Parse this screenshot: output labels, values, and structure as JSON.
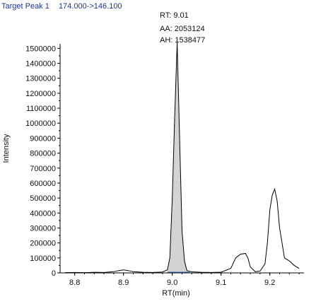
{
  "header": {
    "peak_label": "Target Peak 1",
    "transition": "174.000->146.100"
  },
  "annotation": {
    "rt": "RT: 9.01",
    "aa": "AA: 2053124",
    "ah": "AH: 1538477"
  },
  "colors": {
    "header_text": "#1a3399",
    "peak_fill": "#d3d3d3",
    "trace": "#000000",
    "baseline": "#4a7fbf"
  },
  "chart_data": {
    "type": "line",
    "title": "",
    "xlabel": "RT(min)",
    "ylabel": "Intensity",
    "xlim": [
      8.77,
      9.27
    ],
    "ylim": [
      0,
      1530000
    ],
    "x_ticks": [
      8.8,
      8.9,
      9.0,
      9.1,
      9.2
    ],
    "x_tick_labels": [
      "8.8",
      "8.9",
      "9.0",
      "9.1",
      "9.2"
    ],
    "y_ticks": [
      0,
      100000,
      200000,
      300000,
      400000,
      500000,
      600000,
      700000,
      800000,
      900000,
      1000000,
      1100000,
      1200000,
      1300000,
      1400000,
      1500000
    ],
    "y_tick_labels": [
      "0",
      "100000",
      "200000",
      "300000",
      "400000",
      "500000",
      "600000",
      "700000",
      "800000",
      "900000",
      "1000000",
      "1100000",
      "1200000",
      "1300000",
      "1400000",
      "1500000"
    ],
    "grid": false,
    "series": [
      {
        "x": [
          8.78,
          8.8,
          8.82,
          8.84,
          8.86,
          8.88,
          8.89,
          8.9,
          8.91,
          8.92,
          8.94,
          8.96,
          8.98,
          8.99,
          8.995,
          9.0,
          9.005,
          9.01,
          9.015,
          9.02,
          9.025,
          9.03,
          9.04,
          9.06,
          9.08,
          9.1,
          9.12,
          9.13,
          9.14,
          9.15,
          9.155,
          9.16,
          9.17,
          9.18,
          9.19,
          9.195,
          9.2,
          9.205,
          9.21,
          9.215,
          9.22,
          9.23,
          9.24,
          9.25,
          9.26
        ],
        "y": [
          2000,
          3000,
          2000,
          4000,
          3000,
          8000,
          15000,
          20000,
          15000,
          8000,
          4000,
          3000,
          6000,
          20000,
          100000,
          500000,
          1050000,
          1540000,
          900000,
          280000,
          80000,
          15000,
          7000,
          4000,
          3000,
          5000,
          30000,
          100000,
          125000,
          130000,
          100000,
          40000,
          8000,
          12000,
          60000,
          200000,
          420000,
          520000,
          560000,
          480000,
          300000,
          100000,
          80000,
          50000,
          30000
        ]
      }
    ],
    "shaded_peak": {
      "x_start": 8.99,
      "x_end": 9.03,
      "apex_x": 9.01,
      "apex_y": 1540000
    }
  }
}
